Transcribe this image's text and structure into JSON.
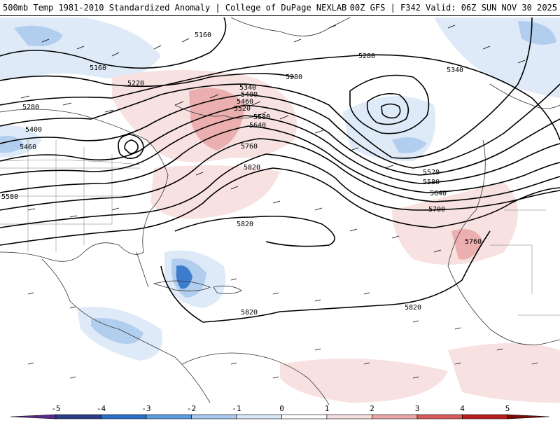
{
  "header": {
    "title_left": "500mb Temp 1981-2010 Standardized Anomaly | College of DuPage NEXLAB",
    "title_right": "00Z GFS | F342 Valid: 06Z SUN NOV 30 2025"
  },
  "map": {
    "contour_labels": [
      {
        "id": "c5160a",
        "text": "5160"
      },
      {
        "id": "c5160b",
        "text": "5160"
      },
      {
        "id": "c5220",
        "text": "5220"
      },
      {
        "id": "c5280a",
        "text": "5280"
      },
      {
        "id": "c5280b",
        "text": "5280"
      },
      {
        "id": "c5280c",
        "text": "5280"
      },
      {
        "id": "c5340a",
        "text": "5340"
      },
      {
        "id": "c5340b",
        "text": "5340"
      },
      {
        "id": "c5400a",
        "text": "5400"
      },
      {
        "id": "c5400b",
        "text": "5400"
      },
      {
        "id": "c5460a",
        "text": "5460"
      },
      {
        "id": "c5460b",
        "text": "5460"
      },
      {
        "id": "c5520a",
        "text": "5520"
      },
      {
        "id": "c5520b",
        "text": "5520"
      },
      {
        "id": "c5580a",
        "text": "5580"
      },
      {
        "id": "c5580b",
        "text": "5580"
      },
      {
        "id": "c5580c",
        "text": "5580"
      },
      {
        "id": "c5640a",
        "text": "5640"
      },
      {
        "id": "c5640b",
        "text": "5640"
      },
      {
        "id": "c5700",
        "text": "5700"
      },
      {
        "id": "c5760a",
        "text": "5760"
      },
      {
        "id": "c5760b",
        "text": "5760"
      },
      {
        "id": "c5820a",
        "text": "5820"
      },
      {
        "id": "c5820b",
        "text": "5820"
      },
      {
        "id": "c5820c",
        "text": "5820"
      },
      {
        "id": "c5820d",
        "text": "5820"
      }
    ]
  },
  "legend": {
    "ticks": [
      "-5",
      "-4",
      "-3",
      "-2",
      "-1",
      "0",
      "1",
      "2",
      "3",
      "4",
      "5"
    ],
    "colors": [
      "#5a2a8a",
      "#2a3f8a",
      "#2a6fc8",
      "#5a9de0",
      "#a9c9ee",
      "#dbe8f7",
      "#ffffff",
      "#f7dede",
      "#eba7a7",
      "#d85c5c",
      "#b81e1e",
      "#7a0a0a",
      "#f2c200"
    ]
  }
}
